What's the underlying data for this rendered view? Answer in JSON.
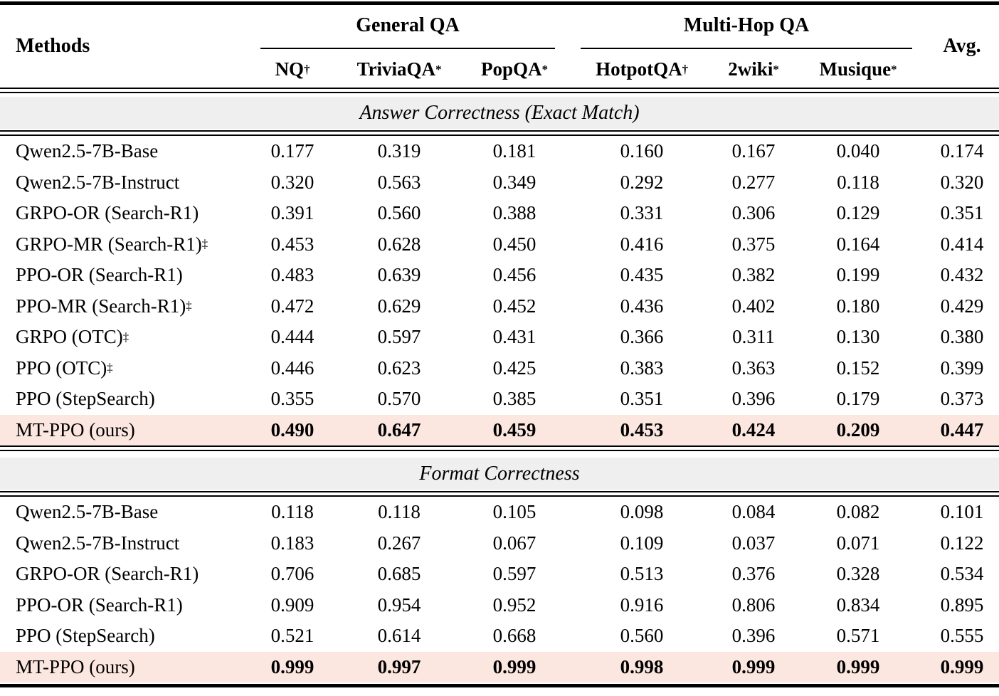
{
  "header": {
    "methods": "Methods",
    "avg": "Avg.",
    "groups": [
      {
        "label": "General QA",
        "columns": [
          {
            "name": "NQ",
            "sup": "†"
          },
          {
            "name": "TriviaQA",
            "sup": "*"
          },
          {
            "name": "PopQA",
            "sup": "*"
          }
        ]
      },
      {
        "label": "Multi-Hop QA",
        "columns": [
          {
            "name": "HotpotQA",
            "sup": "†"
          },
          {
            "name": "2wiki",
            "sup": "*"
          },
          {
            "name": "Musique",
            "sup": "*"
          }
        ]
      }
    ]
  },
  "sections": [
    {
      "title": "Answer Correctness (Exact Match)",
      "rows": [
        {
          "method": "Qwen2.5-7B-Base",
          "sup": "",
          "values": [
            "0.177",
            "0.319",
            "0.181",
            "0.160",
            "0.167",
            "0.040",
            "0.174"
          ],
          "highlight": false
        },
        {
          "method": "Qwen2.5-7B-Instruct",
          "sup": "",
          "values": [
            "0.320",
            "0.563",
            "0.349",
            "0.292",
            "0.277",
            "0.118",
            "0.320"
          ],
          "highlight": false
        },
        {
          "method": "GRPO-OR (Search-R1)",
          "sup": "",
          "values": [
            "0.391",
            "0.560",
            "0.388",
            "0.331",
            "0.306",
            "0.129",
            "0.351"
          ],
          "highlight": false
        },
        {
          "method": "GRPO-MR (Search-R1)",
          "sup": "‡",
          "values": [
            "0.453",
            "0.628",
            "0.450",
            "0.416",
            "0.375",
            "0.164",
            "0.414"
          ],
          "highlight": false
        },
        {
          "method": "PPO-OR (Search-R1)",
          "sup": "",
          "values": [
            "0.483",
            "0.639",
            "0.456",
            "0.435",
            "0.382",
            "0.199",
            "0.432"
          ],
          "highlight": false
        },
        {
          "method": "PPO-MR (Search-R1)",
          "sup": "‡",
          "values": [
            "0.472",
            "0.629",
            "0.452",
            "0.436",
            "0.402",
            "0.180",
            "0.429"
          ],
          "highlight": false
        },
        {
          "method": "GRPO (OTC)",
          "sup": "‡",
          "values": [
            "0.444",
            "0.597",
            "0.431",
            "0.366",
            "0.311",
            "0.130",
            "0.380"
          ],
          "highlight": false
        },
        {
          "method": "PPO (OTC)",
          "sup": "‡",
          "values": [
            "0.446",
            "0.623",
            "0.425",
            "0.383",
            "0.363",
            "0.152",
            "0.399"
          ],
          "highlight": false
        },
        {
          "method": "PPO (StepSearch)",
          "sup": "",
          "values": [
            "0.355",
            "0.570",
            "0.385",
            "0.351",
            "0.396",
            "0.179",
            "0.373"
          ],
          "highlight": false
        },
        {
          "method": "MT-PPO (ours)",
          "sup": "",
          "values": [
            "0.490",
            "0.647",
            "0.459",
            "0.453",
            "0.424",
            "0.209",
            "0.447"
          ],
          "highlight": true
        }
      ]
    },
    {
      "title": "Format Correctness",
      "rows": [
        {
          "method": "Qwen2.5-7B-Base",
          "sup": "",
          "values": [
            "0.118",
            "0.118",
            "0.105",
            "0.098",
            "0.084",
            "0.082",
            "0.101"
          ],
          "highlight": false
        },
        {
          "method": "Qwen2.5-7B-Instruct",
          "sup": "",
          "values": [
            "0.183",
            "0.267",
            "0.067",
            "0.109",
            "0.037",
            "0.071",
            "0.122"
          ],
          "highlight": false
        },
        {
          "method": "GRPO-OR (Search-R1)",
          "sup": "",
          "values": [
            "0.706",
            "0.685",
            "0.597",
            "0.513",
            "0.376",
            "0.328",
            "0.534"
          ],
          "highlight": false
        },
        {
          "method": "PPO-OR (Search-R1)",
          "sup": "",
          "values": [
            "0.909",
            "0.954",
            "0.952",
            "0.916",
            "0.806",
            "0.834",
            "0.895"
          ],
          "highlight": false
        },
        {
          "method": "PPO (StepSearch)",
          "sup": "",
          "values": [
            "0.521",
            "0.614",
            "0.668",
            "0.560",
            "0.396",
            "0.571",
            "0.555"
          ],
          "highlight": false
        },
        {
          "method": "MT-PPO (ours)",
          "sup": "",
          "values": [
            "0.999",
            "0.997",
            "0.999",
            "0.998",
            "0.999",
            "0.999",
            "0.999"
          ],
          "highlight": true
        }
      ]
    }
  ],
  "colors": {
    "highlight_row": "#fbe6e0",
    "section_band": "#efefef",
    "rule": "#000000"
  }
}
